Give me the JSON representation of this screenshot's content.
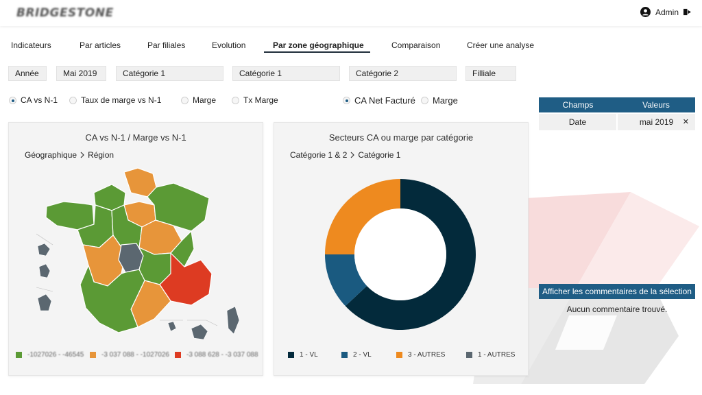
{
  "header": {
    "logo_text": "BRIDGESTONE",
    "user_name": "Admin"
  },
  "tabs": [
    {
      "label": "Indicateurs"
    },
    {
      "label": "Par articles"
    },
    {
      "label": "Par filiales"
    },
    {
      "label": "Evolution"
    },
    {
      "label": "Par zone géographique",
      "active": true
    },
    {
      "label": "Comparaison"
    },
    {
      "label": "Créer une analyse"
    }
  ],
  "filters": [
    {
      "value": "Année"
    },
    {
      "value": "Mai 2019"
    },
    {
      "value": "Catégorie 1"
    },
    {
      "value": "Catégorie 1"
    },
    {
      "value": "Catégorie 2"
    },
    {
      "value": "Filliale"
    }
  ],
  "radios_left": [
    {
      "label": "CA vs N-1",
      "selected": true
    },
    {
      "label": "Taux de marge vs N-1",
      "selected": false
    },
    {
      "label": "Marge",
      "selected": false
    },
    {
      "label": "Tx Marge",
      "selected": false
    }
  ],
  "radios_right": [
    {
      "label": "CA Net Facturé",
      "selected": true
    },
    {
      "label": "Marge",
      "selected": false
    }
  ],
  "map_panel": {
    "title": "CA vs N-1 / Marge vs N-1",
    "breadcrumb": [
      "Géographique",
      "Région"
    ],
    "legend": [
      {
        "label": "-1027026 - -46545",
        "color": "#5b9a35"
      },
      {
        "label": "-3 037 088 - -1027026",
        "color": "#e7953a"
      },
      {
        "label": "-3 088 628 - -3 037 088",
        "color": "#dd3b22"
      }
    ],
    "colors": {
      "green": "#5b9a35",
      "orange": "#e7953a",
      "red": "#dd3b22",
      "grey": "#5b6770",
      "outre_mer": "#4a5560"
    }
  },
  "donut_panel": {
    "title": "Secteurs CA ou marge par catégorie",
    "breadcrumb": [
      "Catégorie 1 & 2",
      "Catégorie 1"
    ]
  },
  "chart_data": {
    "type": "pie",
    "categories": [
      "1 - VL",
      "2 - VL",
      "3 - AUTRES",
      "1 - AUTRES"
    ],
    "values": [
      63,
      12,
      25,
      0
    ],
    "colors": [
      "#032a3b",
      "#1a5a80",
      "#ee8a1f",
      "#5b6770"
    ],
    "donut": true,
    "legend_position": "bottom"
  },
  "selection_table": {
    "headers": [
      "Champs",
      "Valeurs"
    ],
    "rows": [
      {
        "field": "Date",
        "value": "mai 2019"
      }
    ]
  },
  "comments": {
    "button_label": "Afficher les commentaires de la sélection",
    "empty_text": "Aucun commentaire trouvé."
  }
}
